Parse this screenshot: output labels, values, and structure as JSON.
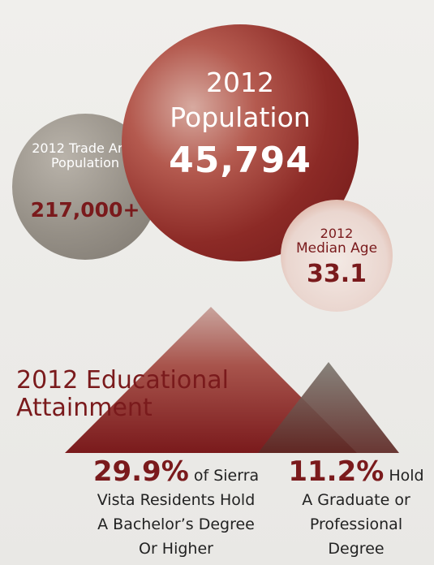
{
  "population": {
    "year": "2012",
    "label": "Population",
    "value": "45,794"
  },
  "trade_area": {
    "label": "2012 Trade Area Population",
    "value": "217,000+"
  },
  "median_age": {
    "year": "2012",
    "label": "Median Age",
    "value": "33.1"
  },
  "education": {
    "title_line1": "2012 Educational",
    "title_line2": "Attainment",
    "bachelors": {
      "percent": "29.9%",
      "text_a": " of Sierra",
      "text_b": "Vista Residents Hold",
      "text_c": "A Bachelor’s Degree",
      "text_d": "Or Higher"
    },
    "graduate": {
      "percent": "11.2%",
      "text_a": " Hold",
      "text_b": "A Graduate or",
      "text_c": "Professional",
      "text_d": "Degree"
    }
  },
  "colors": {
    "brand_red": "#7a1a1c",
    "gray": "#958f86",
    "light": "#f0efec"
  }
}
